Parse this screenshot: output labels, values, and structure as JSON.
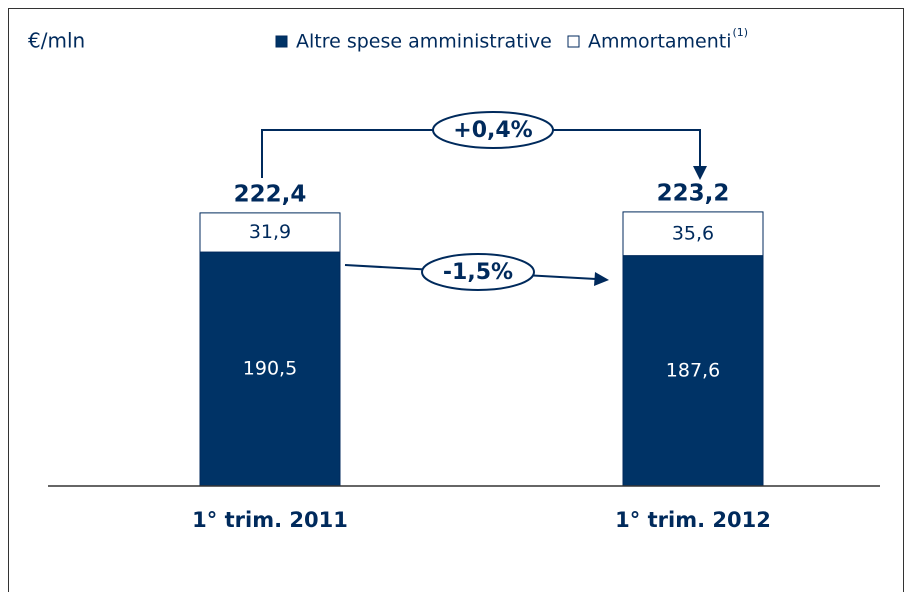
{
  "chart_data": {
    "type": "stacked_bar",
    "unit_label": "€/mln",
    "categories": [
      "1° trim. 2011",
      "1° trim. 2012"
    ],
    "series": [
      {
        "name": "Altre spese amministrative",
        "color": "#003366",
        "values": [
          190.5,
          187.6
        ],
        "value_labels": [
          "190,5",
          "187,6"
        ]
      },
      {
        "name": "Ammortamenti",
        "color": "#ffffff",
        "values": [
          31.9,
          35.6
        ],
        "value_labels": [
          "31,9",
          "35,6"
        ]
      }
    ],
    "legend_note": "(1)",
    "totals": [
      222.4,
      223.2
    ],
    "total_labels": [
      "222,4",
      "223,2"
    ],
    "annotations": [
      "+0,4%",
      "-1,5%"
    ],
    "ylim": [
      0,
      250
    ]
  }
}
